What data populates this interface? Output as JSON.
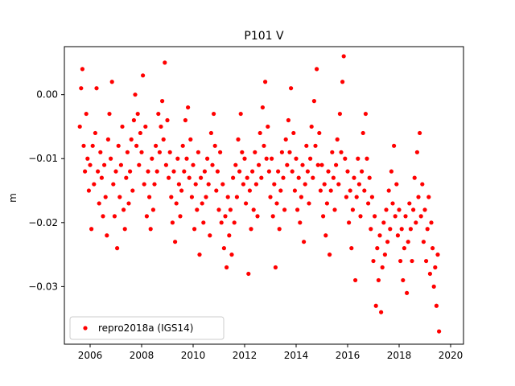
{
  "chart_data": {
    "type": "scatter",
    "title": "P101 V",
    "xlabel": "",
    "ylabel": "m",
    "xlim": [
      2005.0,
      2020.5
    ],
    "ylim": [
      -0.039,
      0.0075
    ],
    "xticks": [
      2006,
      2008,
      2010,
      2012,
      2014,
      2016,
      2018,
      2020
    ],
    "xtick_labels": [
      "2006",
      "2008",
      "2010",
      "2012",
      "2014",
      "2016",
      "2018",
      "2020"
    ],
    "yticks": [
      0.0,
      -0.01,
      -0.02,
      -0.03
    ],
    "ytick_labels": [
      "0.00",
      "−0.01",
      "−0.02",
      "−0.03"
    ],
    "grid": false,
    "legend_position": "lower-left",
    "marker_color": "#ff0000",
    "series": [
      {
        "name": "repro2018a (IGS14)",
        "color": "#ff0000",
        "points": [
          [
            2005.6,
            -0.005
          ],
          [
            2005.65,
            0.001
          ],
          [
            2005.7,
            0.004
          ],
          [
            2005.75,
            -0.008
          ],
          [
            2005.8,
            -0.012
          ],
          [
            2005.85,
            -0.003
          ],
          [
            2005.9,
            -0.01
          ],
          [
            2005.95,
            -0.015
          ],
          [
            2006.0,
            -0.011
          ],
          [
            2006.05,
            -0.021
          ],
          [
            2006.1,
            -0.008
          ],
          [
            2006.15,
            -0.014
          ],
          [
            2006.2,
            -0.006
          ],
          [
            2006.25,
            0.001
          ],
          [
            2006.3,
            -0.012
          ],
          [
            2006.35,
            -0.017
          ],
          [
            2006.4,
            -0.009
          ],
          [
            2006.45,
            -0.013
          ],
          [
            2006.5,
            -0.019
          ],
          [
            2006.55,
            -0.011
          ],
          [
            2006.6,
            -0.016
          ],
          [
            2006.65,
            -0.022
          ],
          [
            2006.7,
            -0.007
          ],
          [
            2006.75,
            -0.003
          ],
          [
            2006.8,
            -0.01
          ],
          [
            2006.85,
            0.002
          ],
          [
            2006.9,
            -0.014
          ],
          [
            2006.95,
            -0.019
          ],
          [
            2007.0,
            -0.012
          ],
          [
            2007.05,
            -0.024
          ],
          [
            2007.1,
            -0.008
          ],
          [
            2007.15,
            -0.016
          ],
          [
            2007.2,
            -0.011
          ],
          [
            2007.25,
            -0.005
          ],
          [
            2007.3,
            -0.018
          ],
          [
            2007.35,
            -0.021
          ],
          [
            2007.4,
            -0.013
          ],
          [
            2007.45,
            -0.009
          ],
          [
            2007.5,
            -0.017
          ],
          [
            2007.55,
            -0.012
          ],
          [
            2007.6,
            -0.007
          ],
          [
            2007.65,
            -0.015
          ],
          [
            2007.7,
            -0.004
          ],
          [
            2007.75,
            0.0
          ],
          [
            2007.8,
            -0.008
          ],
          [
            2007.85,
            -0.003
          ],
          [
            2007.9,
            -0.011
          ],
          [
            2007.95,
            -0.006
          ],
          [
            2008.0,
            -0.009
          ],
          [
            2008.05,
            0.003
          ],
          [
            2008.1,
            -0.014
          ],
          [
            2008.15,
            -0.005
          ],
          [
            2008.2,
            -0.019
          ],
          [
            2008.25,
            -0.012
          ],
          [
            2008.3,
            -0.016
          ],
          [
            2008.35,
            -0.021
          ],
          [
            2008.4,
            -0.01
          ],
          [
            2008.45,
            -0.018
          ],
          [
            2008.5,
            -0.014
          ],
          [
            2008.55,
            -0.008
          ],
          [
            2008.6,
            -0.012
          ],
          [
            2008.65,
            -0.003
          ],
          [
            2008.7,
            -0.009
          ],
          [
            2008.75,
            -0.005
          ],
          [
            2008.8,
            -0.001
          ],
          [
            2008.85,
            -0.007
          ],
          [
            2008.9,
            0.005
          ],
          [
            2008.95,
            -0.011
          ],
          [
            2009.0,
            -0.004
          ],
          [
            2009.05,
            -0.013
          ],
          [
            2009.1,
            -0.009
          ],
          [
            2009.15,
            -0.016
          ],
          [
            2009.2,
            -0.02
          ],
          [
            2009.25,
            -0.012
          ],
          [
            2009.3,
            -0.023
          ],
          [
            2009.35,
            -0.017
          ],
          [
            2009.4,
            -0.01
          ],
          [
            2009.45,
            -0.014
          ],
          [
            2009.5,
            -0.019
          ],
          [
            2009.55,
            -0.015
          ],
          [
            2009.6,
            -0.008
          ],
          [
            2009.65,
            -0.012
          ],
          [
            2009.7,
            -0.004
          ],
          [
            2009.75,
            -0.01
          ],
          [
            2009.8,
            -0.002
          ],
          [
            2009.85,
            -0.013
          ],
          [
            2009.9,
            -0.007
          ],
          [
            2009.95,
            -0.016
          ],
          [
            2010.0,
            -0.011
          ],
          [
            2010.05,
            -0.021
          ],
          [
            2010.1,
            -0.014
          ],
          [
            2010.15,
            -0.018
          ],
          [
            2010.2,
            -0.009
          ],
          [
            2010.25,
            -0.025
          ],
          [
            2010.3,
            -0.013
          ],
          [
            2010.35,
            -0.017
          ],
          [
            2010.4,
            -0.02
          ],
          [
            2010.45,
            -0.012
          ],
          [
            2010.5,
            -0.016
          ],
          [
            2010.55,
            -0.01
          ],
          [
            2010.6,
            -0.014
          ],
          [
            2010.65,
            -0.022
          ],
          [
            2010.7,
            -0.006
          ],
          [
            2010.75,
            -0.011
          ],
          [
            2010.8,
            -0.003
          ],
          [
            2010.85,
            -0.008
          ],
          [
            2010.9,
            -0.015
          ],
          [
            2010.95,
            -0.012
          ],
          [
            2011.0,
            -0.018
          ],
          [
            2011.05,
            -0.009
          ],
          [
            2011.1,
            -0.02
          ],
          [
            2011.15,
            -0.014
          ],
          [
            2011.2,
            -0.024
          ],
          [
            2011.25,
            -0.019
          ],
          [
            2011.3,
            -0.027
          ],
          [
            2011.35,
            -0.016
          ],
          [
            2011.4,
            -0.022
          ],
          [
            2011.45,
            -0.018
          ],
          [
            2011.5,
            -0.025
          ],
          [
            2011.55,
            -0.013
          ],
          [
            2011.6,
            -0.02
          ],
          [
            2011.65,
            -0.011
          ],
          [
            2011.7,
            -0.016
          ],
          [
            2011.75,
            -0.007
          ],
          [
            2011.8,
            -0.012
          ],
          [
            2011.85,
            -0.003
          ],
          [
            2011.9,
            -0.009
          ],
          [
            2011.95,
            -0.014
          ],
          [
            2012.0,
            -0.01
          ],
          [
            2012.05,
            -0.017
          ],
          [
            2012.1,
            -0.013
          ],
          [
            2012.15,
            -0.028
          ],
          [
            2012.2,
            -0.015
          ],
          [
            2012.25,
            -0.021
          ],
          [
            2012.3,
            -0.012
          ],
          [
            2012.35,
            -0.018
          ],
          [
            2012.4,
            -0.009
          ],
          [
            2012.45,
            -0.014
          ],
          [
            2012.5,
            -0.019
          ],
          [
            2012.55,
            -0.011
          ],
          [
            2012.6,
            -0.006
          ],
          [
            2012.65,
            -0.013
          ],
          [
            2012.7,
            -0.002
          ],
          [
            2012.75,
            -0.008
          ],
          [
            2012.8,
            0.002
          ],
          [
            2012.85,
            -0.01
          ],
          [
            2012.9,
            -0.005
          ],
          [
            2012.95,
            -0.012
          ],
          [
            2013.0,
            -0.016
          ],
          [
            2013.05,
            -0.01
          ],
          [
            2013.1,
            -0.019
          ],
          [
            2013.15,
            -0.014
          ],
          [
            2013.2,
            -0.027
          ],
          [
            2013.25,
            -0.017
          ],
          [
            2013.3,
            -0.012
          ],
          [
            2013.35,
            -0.021
          ],
          [
            2013.4,
            -0.015
          ],
          [
            2013.45,
            -0.009
          ],
          [
            2013.5,
            -0.013
          ],
          [
            2013.55,
            -0.018
          ],
          [
            2013.6,
            -0.007
          ],
          [
            2013.65,
            -0.011
          ],
          [
            2013.7,
            -0.004
          ],
          [
            2013.75,
            -0.009
          ],
          [
            2013.8,
            0.001
          ],
          [
            2013.85,
            -0.012
          ],
          [
            2013.9,
            -0.006
          ],
          [
            2013.95,
            -0.015
          ],
          [
            2014.0,
            -0.01
          ],
          [
            2014.05,
            -0.018
          ],
          [
            2014.1,
            -0.013
          ],
          [
            2014.15,
            -0.02
          ],
          [
            2014.2,
            -0.016
          ],
          [
            2014.25,
            -0.011
          ],
          [
            2014.3,
            -0.023
          ],
          [
            2014.35,
            -0.014
          ],
          [
            2014.4,
            -0.008
          ],
          [
            2014.45,
            -0.012
          ],
          [
            2014.5,
            -0.017
          ],
          [
            2014.55,
            -0.01
          ],
          [
            2014.6,
            -0.005
          ],
          [
            2014.65,
            -0.013
          ],
          [
            2014.7,
            -0.001
          ],
          [
            2014.75,
            -0.008
          ],
          [
            2014.8,
            0.004
          ],
          [
            2014.85,
            -0.011
          ],
          [
            2014.9,
            -0.006
          ],
          [
            2014.95,
            -0.015
          ],
          [
            2015.0,
            -0.011
          ],
          [
            2015.05,
            -0.019
          ],
          [
            2015.1,
            -0.014
          ],
          [
            2015.15,
            -0.022
          ],
          [
            2015.2,
            -0.017
          ],
          [
            2015.25,
            -0.012
          ],
          [
            2015.3,
            -0.025
          ],
          [
            2015.35,
            -0.015
          ],
          [
            2015.4,
            -0.009
          ],
          [
            2015.45,
            -0.013
          ],
          [
            2015.5,
            -0.018
          ],
          [
            2015.55,
            -0.011
          ],
          [
            2015.6,
            -0.007
          ],
          [
            2015.65,
            -0.014
          ],
          [
            2015.7,
            -0.003
          ],
          [
            2015.75,
            -0.009
          ],
          [
            2015.8,
            0.002
          ],
          [
            2015.85,
            0.006
          ],
          [
            2015.9,
            -0.01
          ],
          [
            2015.95,
            -0.016
          ],
          [
            2016.0,
            -0.012
          ],
          [
            2016.05,
            -0.02
          ],
          [
            2016.1,
            -0.015
          ],
          [
            2016.15,
            -0.024
          ],
          [
            2016.2,
            -0.018
          ],
          [
            2016.25,
            -0.013
          ],
          [
            2016.3,
            -0.029
          ],
          [
            2016.35,
            -0.016
          ],
          [
            2016.4,
            -0.01
          ],
          [
            2016.45,
            -0.014
          ],
          [
            2016.5,
            -0.019
          ],
          [
            2016.55,
            -0.012
          ],
          [
            2016.6,
            -0.006
          ],
          [
            2016.65,
            -0.015
          ],
          [
            2016.7,
            -0.003
          ],
          [
            2016.75,
            -0.01
          ],
          [
            2016.8,
            -0.017
          ],
          [
            2016.85,
            -0.013
          ],
          [
            2016.9,
            -0.021
          ],
          [
            2016.95,
            -0.016
          ],
          [
            2017.0,
            -0.026
          ],
          [
            2017.05,
            -0.019
          ],
          [
            2017.1,
            -0.033
          ],
          [
            2017.15,
            -0.024
          ],
          [
            2017.2,
            -0.029
          ],
          [
            2017.25,
            -0.022
          ],
          [
            2017.3,
            -0.034
          ],
          [
            2017.35,
            -0.027
          ],
          [
            2017.4,
            -0.02
          ],
          [
            2017.45,
            -0.025
          ],
          [
            2017.5,
            -0.018
          ],
          [
            2017.55,
            -0.023
          ],
          [
            2017.6,
            -0.015
          ],
          [
            2017.65,
            -0.021
          ],
          [
            2017.7,
            -0.012
          ],
          [
            2017.75,
            -0.017
          ],
          [
            2017.8,
            -0.008
          ],
          [
            2017.85,
            -0.019
          ],
          [
            2017.9,
            -0.014
          ],
          [
            2017.95,
            -0.022
          ],
          [
            2018.0,
            -0.018
          ],
          [
            2018.05,
            -0.026
          ],
          [
            2018.1,
            -0.021
          ],
          [
            2018.15,
            -0.029
          ],
          [
            2018.2,
            -0.024
          ],
          [
            2018.25,
            -0.019
          ],
          [
            2018.3,
            -0.031
          ],
          [
            2018.35,
            -0.023
          ],
          [
            2018.4,
            -0.017
          ],
          [
            2018.45,
            -0.021
          ],
          [
            2018.5,
            -0.026
          ],
          [
            2018.55,
            -0.018
          ],
          [
            2018.6,
            -0.013
          ],
          [
            2018.65,
            -0.02
          ],
          [
            2018.7,
            -0.009
          ],
          [
            2018.75,
            -0.016
          ],
          [
            2018.8,
            -0.006
          ],
          [
            2018.85,
            -0.019
          ],
          [
            2018.9,
            -0.014
          ],
          [
            2018.95,
            -0.023
          ],
          [
            2019.0,
            -0.018
          ],
          [
            2019.05,
            -0.026
          ],
          [
            2019.1,
            -0.021
          ],
          [
            2019.15,
            -0.016
          ],
          [
            2019.2,
            -0.028
          ],
          [
            2019.25,
            -0.02
          ],
          [
            2019.3,
            -0.024
          ],
          [
            2019.35,
            -0.03
          ],
          [
            2019.4,
            -0.027
          ],
          [
            2019.45,
            -0.033
          ],
          [
            2019.5,
            -0.025
          ],
          [
            2019.55,
            -0.037
          ]
        ]
      }
    ]
  }
}
